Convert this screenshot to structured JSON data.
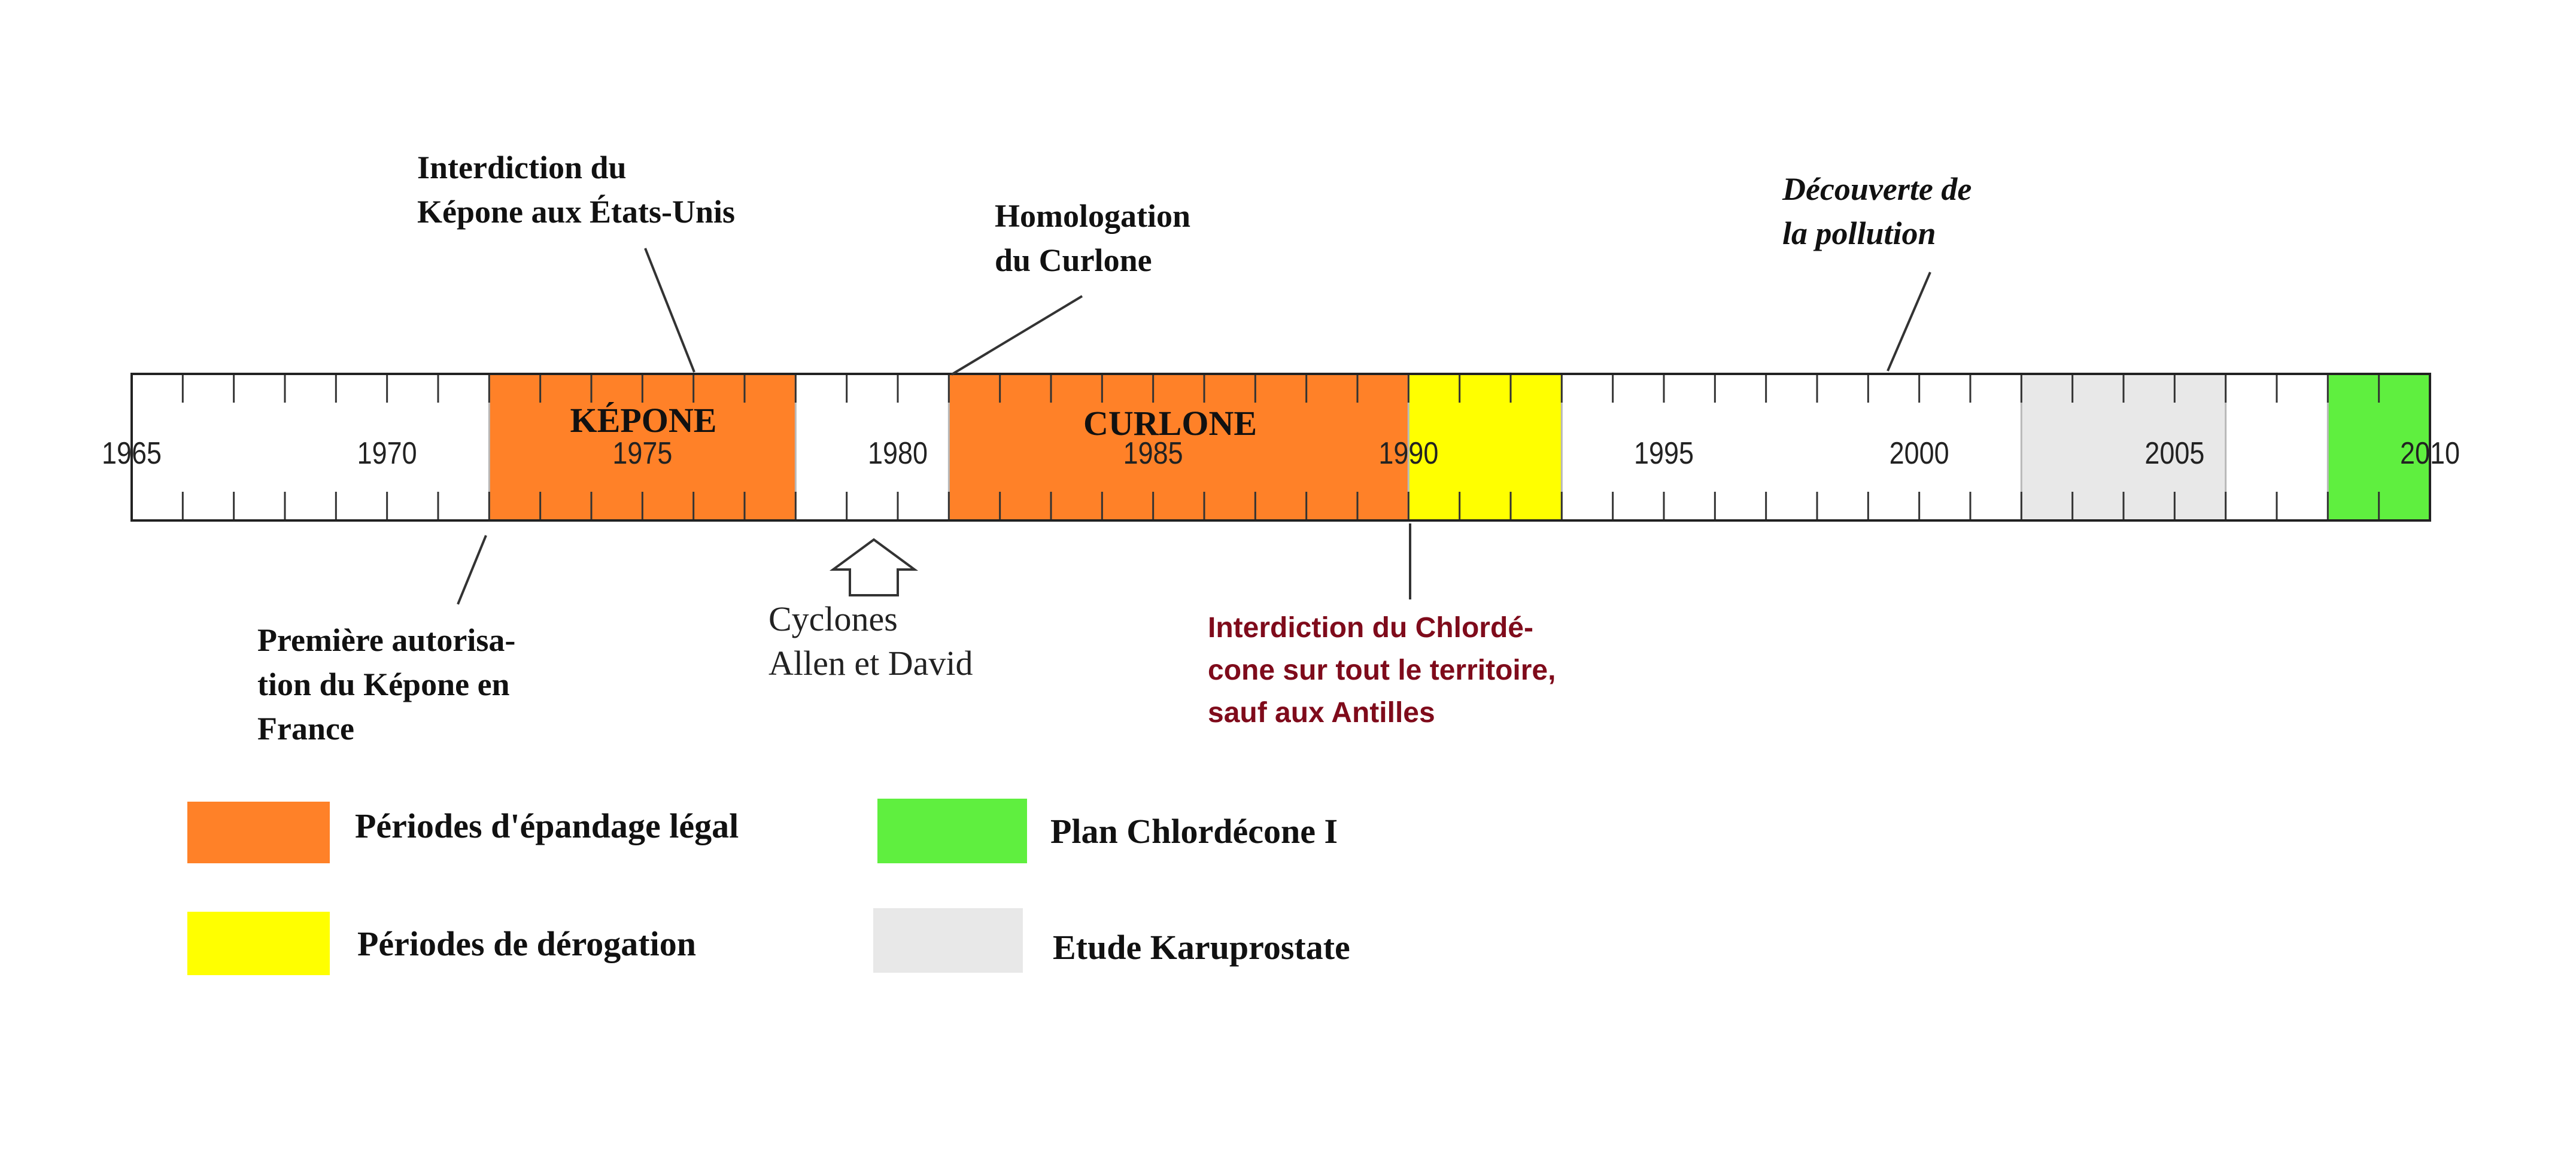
{
  "timeline": {
    "start_year": 1965,
    "end_year": 2010,
    "tick_step_years": 1,
    "year_labels": [
      "1965",
      "1970",
      "1975",
      "1980",
      "1985",
      "1990",
      "1995",
      "2000",
      "2005",
      "2010"
    ],
    "periods": [
      {
        "key": "kepone",
        "from": 1972,
        "to": 1978,
        "label": "KÉPONE",
        "color": "#ff8128",
        "category": "legal"
      },
      {
        "key": "curlone",
        "from": 1981,
        "to": 1990,
        "label": "CURLONE",
        "color": "#ff8128",
        "category": "legal"
      },
      {
        "key": "derogation",
        "from": 1990,
        "to": 1993,
        "label": "",
        "color": "#ffff00",
        "category": "derogation"
      },
      {
        "key": "karuprostate",
        "from": 2002,
        "to": 2006,
        "label": "",
        "color": "#e8e8e8",
        "category": "karuprostate"
      },
      {
        "key": "plan1",
        "from": 2008,
        "to": 2010,
        "label": "",
        "color": "#5fef3f",
        "category": "plan"
      }
    ]
  },
  "annotations": {
    "us_ban": {
      "lines": [
        "Interdiction du",
        "Képone aux États-Unis"
      ],
      "year": 1976
    },
    "curlone_approval": {
      "lines": [
        "Homologation",
        "du Curlone"
      ],
      "year": 1981
    },
    "pollution_discovery": {
      "lines": [
        "Découverte de",
        "la pollution"
      ],
      "year": 1999
    },
    "first_authorisation": {
      "lines": [
        "Première autorisa-",
        "tion du Képone en",
        "France"
      ],
      "year": 1972
    },
    "cyclones": {
      "lines": [
        "Cyclones",
        "Allen et David"
      ],
      "year": 1979.5
    },
    "national_ban": {
      "lines": [
        "Interdiction du Chlordé-",
        "cone sur tout le territoire,",
        "sauf aux Antilles"
      ],
      "year": 1990,
      "color": "#7f0b1b"
    }
  },
  "legend": [
    {
      "label": "Périodes d'épandage légal",
      "color": "#ff8128"
    },
    {
      "label": "Plan Chlordécone I",
      "color": "#5fef3f"
    },
    {
      "label": "Périodes de dérogation",
      "color": "#ffff00"
    },
    {
      "label": "Etude Karuprostate",
      "color": "#e8e8e8"
    }
  ]
}
